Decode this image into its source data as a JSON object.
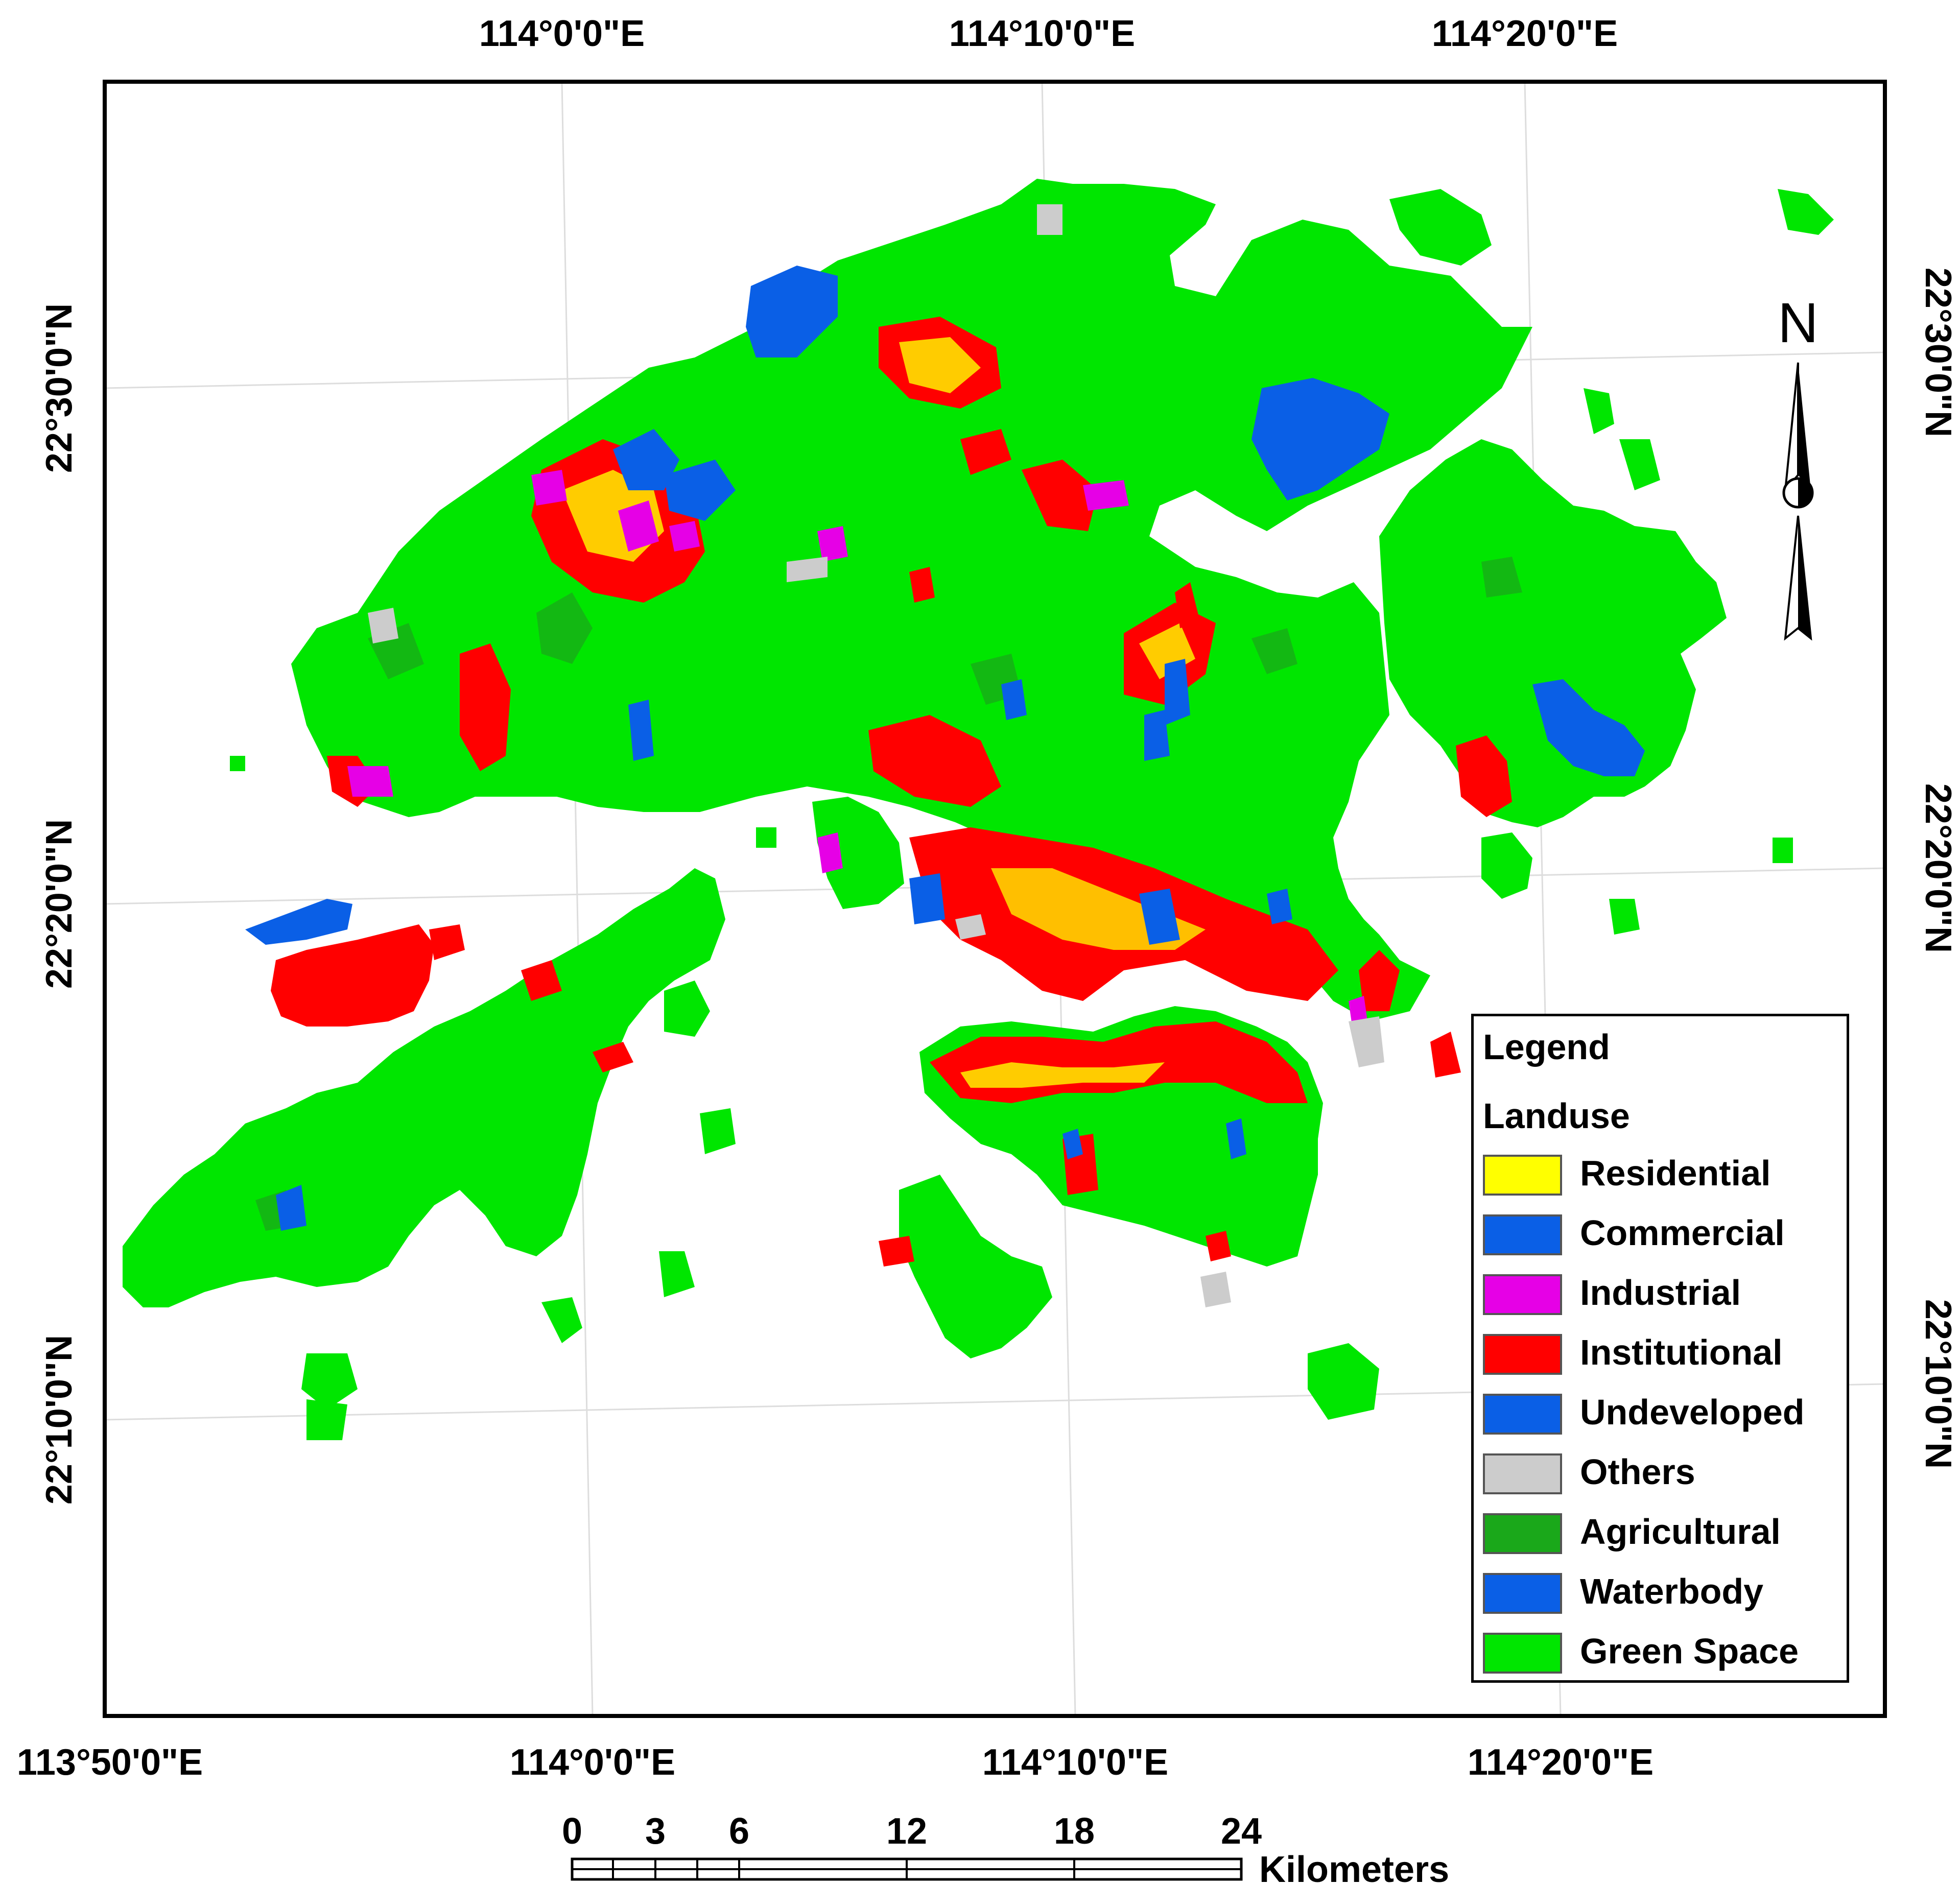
{
  "map": {
    "top_axis_labels": [
      "114°0'0\"E",
      "114°10'0\"E",
      "114°20'0\"E"
    ],
    "bottom_axis_labels": [
      "113°50'0\"E",
      "114°0'0\"E",
      "114°10'0\"E",
      "114°20'0\"E"
    ],
    "left_axis_labels": [
      "22°30'0\"N",
      "22°20'0\"N",
      "22°10'0\"N"
    ],
    "right_axis_labels": [
      "22°30'0\"N",
      "22°20'0\"N",
      "22°10'0\"N"
    ],
    "north_label": "N"
  },
  "legend": {
    "title": "Legend",
    "subtitle": "Landuse",
    "items": [
      {
        "label": "Residential",
        "color": "#ffff00"
      },
      {
        "label": "Commercial",
        "color": "#0a5fe6"
      },
      {
        "label": "Industrial",
        "color": "#e600e6"
      },
      {
        "label": "Institutional",
        "color": "#ff0000"
      },
      {
        "label": "Undeveloped",
        "color": "#0a5fe6"
      },
      {
        "label": "Others",
        "color": "#cccccc"
      },
      {
        "label": "Agricultural",
        "color": "#1aa81a"
      },
      {
        "label": "Waterbody",
        "color": "#0a5fe6"
      },
      {
        "label": "Green Space",
        "color": "#00e600"
      }
    ]
  },
  "scale_bar": {
    "ticks": [
      "0",
      "3",
      "6",
      "12",
      "18",
      "24"
    ],
    "unit": "Kilometers"
  }
}
